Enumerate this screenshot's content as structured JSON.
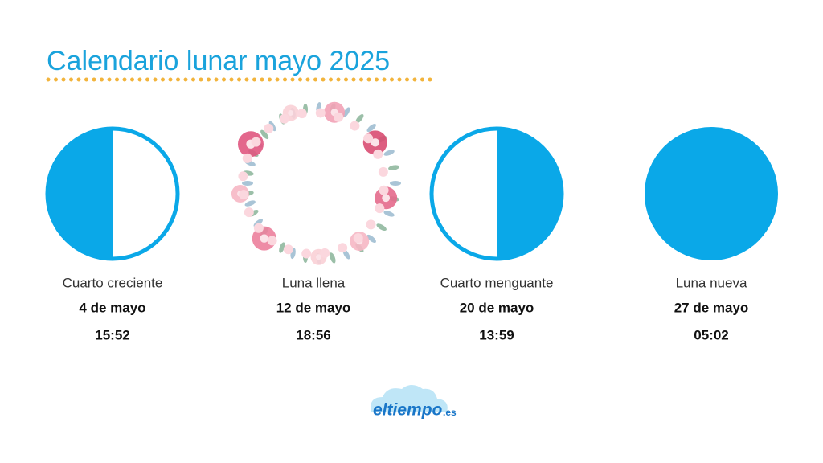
{
  "title": "Calendario lunar mayo 2025",
  "phases": [
    {
      "name": "Cuarto creciente",
      "date": "4 de mayo",
      "time": "15:52"
    },
    {
      "name": "Luna llena",
      "date": "12 de mayo",
      "time": "18:56"
    },
    {
      "name": "Cuarto menguante",
      "date": "20 de mayo",
      "time": "13:59"
    },
    {
      "name": "Luna nueva",
      "date": "27 de mayo",
      "time": "05:02"
    }
  ],
  "logo": {
    "brand": "eltiempo",
    "suffix": ".es"
  }
}
